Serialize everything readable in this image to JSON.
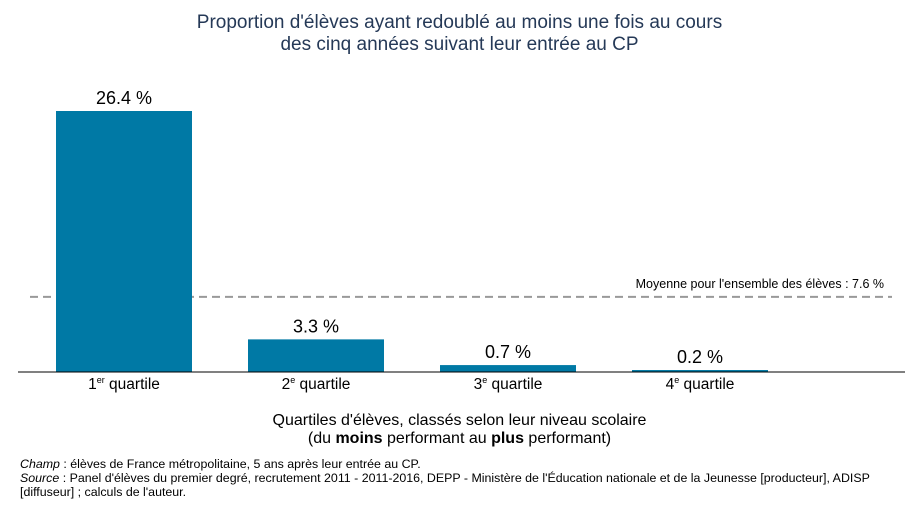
{
  "chart_data": {
    "type": "bar",
    "title_lines": [
      "Proportion d'élèves ayant redoublé au moins une fois au cours",
      "des cinq années suivant leur entrée au CP"
    ],
    "categories": [
      {
        "num": "1",
        "sup": "er",
        "word": "quartile"
      },
      {
        "num": "2",
        "sup": "e",
        "word": "quartile"
      },
      {
        "num": "3",
        "sup": "e",
        "word": "quartile"
      },
      {
        "num": "4",
        "sup": "e",
        "word": "quartile"
      }
    ],
    "values": [
      26.4,
      3.3,
      0.7,
      0.2
    ],
    "value_labels": [
      "26.4 %",
      "3.3 %",
      "0.7 %",
      "0.2 %"
    ],
    "bar_color": "#0079a5",
    "ylim": [
      0,
      26.4
    ],
    "reference_line": {
      "value": 7.6,
      "label": "Moyenne pour l'ensemble des élèves : 7.6 %",
      "color": "#999999"
    },
    "xlabel": {
      "line1": "Quartiles d'élèves, classés selon leur niveau scolaire",
      "line2_a": "(du ",
      "line2_b": "moins",
      "line2_c": " performant au ",
      "line2_d": "plus",
      "line2_e": " performant)"
    },
    "grid": false
  },
  "notes": {
    "champ_label": "Champ",
    "champ_text": " : élèves de France métropolitaine, 5 ans après leur entrée au CP.",
    "source_label": "Source",
    "source_text": " : Panel d'élèves du premier degré, recrutement 2011 - 2011-2016, DEPP - Ministère de l'Éducation nationale et de la Jeunesse [producteur], ADISP [diffuseur] ; calculs de l'auteur."
  }
}
